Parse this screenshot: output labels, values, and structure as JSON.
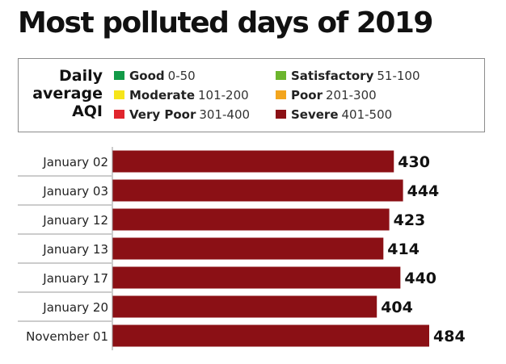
{
  "title": "Most polluted days of 2019",
  "legend": {
    "title_lines": [
      "Daily",
      "average",
      "AQI"
    ],
    "items": [
      {
        "name": "Good",
        "range": "0-50",
        "color": "#129a47"
      },
      {
        "name": "Satisfactory",
        "range": "51-100",
        "color": "#6cb52d"
      },
      {
        "name": "Moderate",
        "range": "101-200",
        "color": "#f6e51a"
      },
      {
        "name": "Poor",
        "range": "201-300",
        "color": "#f3a51d"
      },
      {
        "name": "Very Poor",
        "range": "301-400",
        "color": "#e0252d"
      },
      {
        "name": "Severe",
        "range": "401-500",
        "color": "#8b1015"
      }
    ]
  },
  "chart_data": {
    "type": "bar",
    "orientation": "horizontal",
    "categories": [
      "January 02",
      "January 03",
      "January 12",
      "January 13",
      "January 17",
      "January 20",
      "November 01"
    ],
    "values": [
      430,
      444,
      423,
      414,
      440,
      404,
      484
    ],
    "title": "Most polluted days of 2019",
    "xlabel": "",
    "ylabel": "",
    "bar_color": "#8b1015",
    "grid": false
  }
}
